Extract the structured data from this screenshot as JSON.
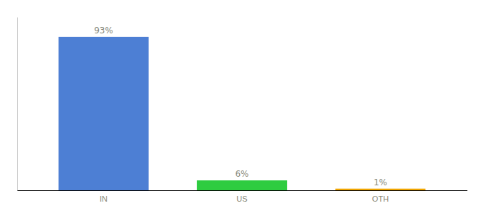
{
  "chart_data": {
    "type": "bar",
    "categories": [
      "IN",
      "US",
      "OTH"
    ],
    "values": [
      93,
      6,
      1
    ],
    "value_labels": [
      "93%",
      "6%",
      "1%"
    ],
    "data_labels": true,
    "colors": [
      "#4d7fd4",
      "#2ecc40",
      "#f0a500"
    ],
    "ylim": [
      0,
      105
    ],
    "tick_labels": "x",
    "grid": false
  }
}
